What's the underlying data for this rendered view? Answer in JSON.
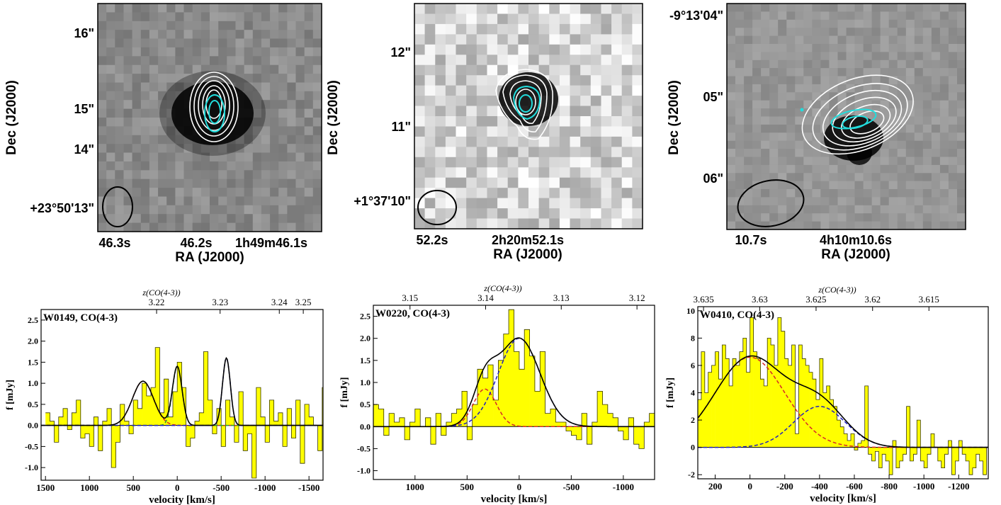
{
  "images": [
    {
      "ylabel": "Dec (J2000)",
      "xlabel": "RA (J2000)",
      "xticks": [
        "46.3s",
        "46.2s",
        "1h49m46.1s"
      ],
      "yticks": [
        "16\"",
        "15\"",
        "14\"",
        "+23°50'13\""
      ],
      "bg": "#8a8a8a"
    },
    {
      "ylabel": "Dec (J2000)",
      "xlabel": "RA (J2000)",
      "xticks": [
        "52.2s",
        "2h20m52.1s"
      ],
      "yticks": [
        "12\"",
        "11\"",
        "+1°37'10\""
      ],
      "bg": "#d9d9d9"
    },
    {
      "ylabel": "Dec (J2000)",
      "xlabel": "RA (J2000)",
      "xticks": [
        "10.7s",
        "4h10m10.6s"
      ],
      "yticks": [
        "-9°13'04\"",
        "05\"",
        "06\""
      ],
      "bg": "#9a9a9a"
    }
  ],
  "chart_data": [
    {
      "type": "bar",
      "label": "W0149, CO(4-3)",
      "xlabel": "velocity [km/s]",
      "ylabel": "f [mJy]",
      "top_label": "z(CO(4-3))",
      "xlim": [
        1550,
        -1660
      ],
      "ylim": [
        -1.3,
        2.75
      ],
      "xticks": [
        1500,
        1000,
        500,
        0,
        -500,
        -1000,
        -1500
      ],
      "xtick_labels": [
        "1500",
        "1000",
        "500",
        "0",
        "-500",
        "-1000",
        "-1500"
      ],
      "yticks": [
        -1.0,
        -0.5,
        0.0,
        0.5,
        1.0,
        1.5,
        2.0,
        2.5
      ],
      "ytick_labels": [
        "-1.0",
        "-0.5",
        "0.0",
        "0.5",
        "1.0",
        "1.5",
        "2.0",
        "2.5"
      ],
      "top_ticks": [
        -1435,
        -1162,
        -488,
        235
      ],
      "top_tick_labels": [
        "3.25",
        "3.24",
        "3.23",
        "3.22"
      ],
      "bin_width": 50,
      "bins_start": 1500,
      "values": [
        0.3,
        0.1,
        -0.4,
        0.2,
        0.4,
        -0.1,
        0.3,
        0.6,
        -0.3,
        -0.2,
        -0.5,
        0.2,
        -0.6,
        0.1,
        0.4,
        -1.0,
        -0.4,
        0.5,
        0.1,
        -0.2,
        0.6,
        0.4,
        1.0,
        0.7,
        0.9,
        1.85,
        0.3,
        1.1,
        0.2,
        0.8,
        1.5,
        0.9,
        -0.5,
        -0.3,
        0.1,
        0.3,
        1.75,
        0.6,
        -0.2,
        0.4,
        -0.5,
        0.6,
        0.2,
        -0.4,
        0.8,
        -0.6,
        -0.2,
        -1.25,
        0.9,
        0.2,
        -0.4,
        0.6,
        0.1,
        0.3,
        -0.5,
        0.4,
        -0.3,
        0.6,
        -0.9,
        0.5,
        0.2,
        0.0,
        -0.6,
        0.9
      ],
      "components": [
        {
          "color": "#d62728",
          "amp": 1.05,
          "center": 390,
          "sigma": 120
        },
        {
          "color": "#2ca02c",
          "amp": 1.4,
          "center": 0,
          "sigma": 55
        },
        {
          "color": "#1f1fbf",
          "amp": 1.6,
          "center": -560,
          "sigma": 45
        }
      ]
    },
    {
      "type": "bar",
      "label": "W0220, CO(4-3)",
      "xlabel": "velocity [km/s]",
      "ylabel": "f [mJy]",
      "top_label": "z(CO(4-3))",
      "xlim": [
        1400,
        -1300
      ],
      "ylim": [
        -1.2,
        2.75
      ],
      "xticks": [
        1000,
        500,
        0,
        -500,
        -1000
      ],
      "xtick_labels": [
        "1000",
        "500",
        "0",
        "-500",
        "-1000"
      ],
      "yticks": [
        -1.0,
        -0.5,
        0.0,
        0.5,
        1.0,
        1.5,
        2.0,
        2.5
      ],
      "ytick_labels": [
        "-1.0",
        "-0.5",
        "0.0",
        "0.5",
        "1.0",
        "1.5",
        "2.0",
        "2.5"
      ],
      "top_ticks": [
        1048,
        322,
        -404,
        -1131
      ],
      "top_tick_labels": [
        "3.15",
        "3.14",
        "3.13",
        "3.12"
      ],
      "bin_width": 50,
      "bins_start": 1400,
      "values": [
        0.5,
        0.4,
        -0.2,
        0.3,
        0.1,
        0.2,
        -0.3,
        0.1,
        0.4,
        0.0,
        0.2,
        -0.4,
        0.3,
        -0.2,
        0.1,
        0.3,
        0.4,
        0.8,
        -0.3,
        0.5,
        1.3,
        1.1,
        1.4,
        0.6,
        1.5,
        2.1,
        2.65,
        1.7,
        1.3,
        2.2,
        1.6,
        0.8,
        1.7,
        0.3,
        0.4,
        0.1,
        0.1,
        -0.1,
        -0.2,
        -0.3,
        0.3,
        -0.4,
        0.1,
        0.8,
        0.5,
        0.3,
        0.2,
        -0.1,
        -0.3,
        0.2,
        -0.4,
        -0.5,
        0.1,
        0.3
      ]
    },
    {
      "type": "bar",
      "label": "W0410, CO(4-3)",
      "xlabel": "velocity [km/s]",
      "ylabel": "f [mJy]",
      "top_label": "z(CO(4-3))",
      "xlim": [
        300,
        -1370
      ],
      "ylim": [
        -2.3,
        10.3
      ],
      "xticks": [
        200,
        0,
        -200,
        -400,
        -600,
        -800,
        -1000,
        -1200
      ],
      "xtick_labels": [
        "200",
        "0",
        "-200",
        "-400",
        "-600",
        "-800",
        "-1000",
        "-1200"
      ],
      "yticks": [
        -2,
        0,
        2,
        4,
        6,
        8,
        10
      ],
      "ytick_labels": [
        "-2",
        "0",
        "2",
        "4",
        "6",
        "8",
        "10"
      ],
      "top_ticks": [
        267,
        -56,
        -380,
        -705,
        -1029
      ],
      "top_tick_labels": [
        "3.635",
        "3.63",
        "3.625",
        "3.62",
        "3.615"
      ],
      "bin_width": 20,
      "bins_start": 300,
      "values": [
        3.5,
        7.0,
        4.0,
        5.5,
        6.0,
        7.0,
        5.0,
        7.5,
        6.5,
        4.5,
        6.5,
        6.0,
        7.0,
        8.0,
        5.5,
        9.5,
        7.0,
        6.5,
        5.0,
        4.5,
        8.0,
        7.5,
        6.0,
        9.5,
        8.5,
        6.5,
        6.0,
        7.5,
        1.0,
        7.5,
        6.5,
        6.0,
        5.5,
        5.0,
        3.5,
        6.5,
        4.0,
        4.5,
        3.5,
        3.0,
        2.0,
        1.5,
        1.0,
        0.5,
        1.0,
        -0.2,
        0.3,
        0.5,
        4.5,
        -0.5,
        -1.0,
        -0.3,
        -1.5,
        -0.5,
        -1.0,
        -2.0,
        0.5,
        -1.5,
        -1.0,
        -0.5,
        3.0,
        -1.0,
        -0.5,
        2.0,
        -1.0,
        -1.5,
        -0.5,
        1.0,
        0.0,
        -1.0,
        -1.5,
        -0.5,
        0.5,
        -2.0,
        -1.0,
        0.5,
        -0.5,
        -1.0,
        -2.0,
        -1.5,
        -0.5,
        -1.0,
        -2.0,
        0.0
      ],
      "components": [
        {
          "color": "#d62728",
          "amp": 6.6,
          "center": 0,
          "sigma": 200
        },
        {
          "color": "#1f1fbf",
          "amp": 3.0,
          "center": -400,
          "sigma": 150
        }
      ]
    }
  ],
  "colors": {
    "hist_fill": "#ffff00",
    "hist_edge": "#333300",
    "total_fit": "#000000",
    "contour_white": "#ffffff",
    "contour_cyan": "#22dddd",
    "beam": "#000000"
  }
}
